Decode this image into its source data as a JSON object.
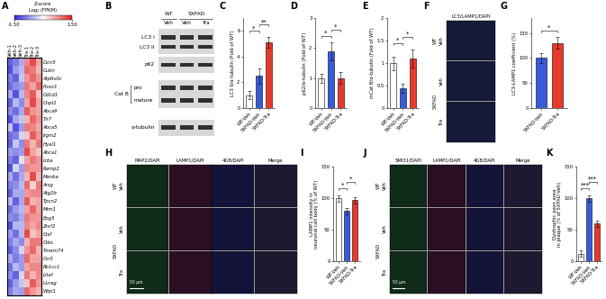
{
  "panel_labels": [
    "A",
    "B",
    "C",
    "D",
    "E",
    "F",
    "G",
    "H",
    "I",
    "J",
    "K"
  ],
  "heatmap": {
    "columns": [
      "Veh-1",
      "Veh-2",
      "Veh-3",
      "Tra-1",
      "Tra-2",
      "Tra-3"
    ],
    "rows": [
      "Clcn5",
      "Cubn",
      "Atp6v0c",
      "Foxo3",
      "Cd1d1",
      "Chpt1",
      "Abca9",
      "Tlr7",
      "Abca5",
      "Irgm2",
      "Hyal1",
      "Abca1",
      "Lrba",
      "Ramp2",
      "Manba",
      "Arsg",
      "Atg2b",
      "Tpcn2",
      "Mtm1",
      "Epg5",
      "Znrf2",
      "Ctsf",
      "Ctbs",
      "Tmem74",
      "Cln5",
      "Rb1cc1",
      "Litaf",
      "Uvrag",
      "Wipi1"
    ],
    "cells": [
      [
        -1.1,
        -0.9,
        -0.6,
        0.8,
        1.2,
        0.6
      ],
      [
        -1.2,
        -0.7,
        -0.5,
        1.0,
        0.9,
        0.5
      ],
      [
        -0.9,
        -1.1,
        -0.4,
        0.7,
        1.0,
        0.7
      ],
      [
        -1.0,
        -0.8,
        -0.7,
        0.9,
        0.6,
        1.0
      ],
      [
        -0.6,
        -1.2,
        -0.5,
        0.8,
        1.1,
        0.4
      ],
      [
        -1.1,
        -0.5,
        -0.8,
        0.6,
        1.2,
        0.6
      ],
      [
        -0.8,
        -1.0,
        -0.6,
        1.1,
        0.7,
        0.6
      ],
      [
        -1.2,
        -0.6,
        -0.4,
        0.5,
        1.0,
        0.7
      ],
      [
        -0.4,
        -1.2,
        -0.7,
        0.9,
        0.8,
        0.6
      ],
      [
        -1.0,
        -0.9,
        -0.3,
        0.4,
        1.1,
        0.7
      ],
      [
        -1.1,
        -0.4,
        -0.8,
        0.9,
        0.5,
        0.9
      ],
      [
        -0.7,
        -0.8,
        -0.7,
        1.2,
        0.6,
        0.4
      ],
      [
        -0.9,
        -1.1,
        -0.2,
        0.6,
        0.9,
        0.7
      ],
      [
        -1.2,
        -0.3,
        -0.7,
        0.8,
        0.7,
        0.7
      ],
      [
        -0.6,
        -1.0,
        -0.6,
        0.5,
        1.2,
        0.5
      ],
      [
        -0.9,
        -0.8,
        -0.5,
        1.0,
        0.3,
        0.9
      ],
      [
        -1.1,
        -0.6,
        -0.6,
        0.7,
        0.8,
        0.8
      ],
      [
        -0.5,
        -1.1,
        -0.6,
        1.1,
        0.5,
        0.6
      ],
      [
        -1.0,
        -0.7,
        -0.5,
        0.6,
        1.0,
        0.6
      ],
      [
        -0.8,
        -0.9,
        -0.6,
        0.9,
        0.7,
        0.7
      ],
      [
        -1.2,
        -0.5,
        -0.5,
        0.8,
        0.6,
        0.8
      ],
      [
        -0.7,
        -1.0,
        -0.5,
        1.2,
        0.4,
        0.6
      ],
      [
        -0.9,
        -0.6,
        -0.8,
        0.5,
        0.9,
        0.9
      ],
      [
        -1.1,
        -0.8,
        -0.3,
        0.7,
        1.0,
        0.5
      ],
      [
        -0.6,
        -0.9,
        -0.7,
        1.0,
        0.6,
        0.6
      ],
      [
        -1.0,
        -0.5,
        -0.7,
        0.6,
        0.8,
        0.8
      ],
      [
        -0.8,
        -1.1,
        -0.3,
        0.9,
        0.5,
        0.8
      ],
      [
        -1.1,
        -0.7,
        -0.4,
        0.4,
        1.1,
        0.7
      ],
      [
        -0.9,
        -0.6,
        -0.7,
        1.0,
        0.7,
        0.5
      ]
    ],
    "colorbar": {
      "title": [
        "Z-score",
        "Log₂ (FPKM)"
      ],
      "range": [
        -1.5,
        1.5
      ],
      "ticks": [
        {
          "value": -1.5,
          "label": "-1.50"
        },
        {
          "value": 1.5,
          "label": "1.50"
        }
      ]
    }
  },
  "blot": {
    "groups": [
      {
        "label": "WT",
        "lanes": [
          "Veh"
        ]
      },
      {
        "label": "5XFAD",
        "lanes": [
          "Veh",
          "Tra"
        ]
      }
    ],
    "rows": [
      "LC3 I",
      "LC3 II",
      "p62",
      "pro",
      "mature",
      "α-tubulin"
    ],
    "bracket": {
      "label": "Cat B",
      "rows": [
        3,
        4
      ]
    }
  },
  "chart_data": [
    {
      "type": "bar",
      "ylabel": "LC3 II/α-tubulin (Fold of WT)",
      "categories": [
        "WT-Veh",
        "5XFAD-Veh",
        "5XFAD-Tra"
      ],
      "values": [
        1.0,
        2.5,
        5.1
      ],
      "errors": [
        0.3,
        0.6,
        0.4
      ],
      "colors": [
        "#ffffff",
        "#3a5bd9",
        "#e8392b"
      ],
      "ylim": [
        0,
        7
      ],
      "yticks": [
        0,
        2,
        4,
        6
      ],
      "significance": [
        {
          "from": 0,
          "to": 1,
          "label": "*"
        },
        {
          "from": 1,
          "to": 2,
          "label": "**"
        }
      ]
    },
    {
      "type": "bar",
      "ylabel": "p62/α-tubulin (Fold of WT)",
      "categories": [
        "WT-Veh",
        "5XFAD-Veh",
        "5XFAD-Tra"
      ],
      "values": [
        1.0,
        1.9,
        1.0
      ],
      "errors": [
        0.15,
        0.3,
        0.2
      ],
      "colors": [
        "#ffffff",
        "#3a5bd9",
        "#e8392b"
      ],
      "ylim": [
        0,
        3
      ],
      "yticks": [
        0,
        1,
        2,
        3
      ],
      "significance": [
        {
          "from": 0,
          "to": 1,
          "label": "*"
        },
        {
          "from": 1,
          "to": 2,
          "label": "*"
        }
      ]
    },
    {
      "type": "bar",
      "ylabel": "mCat B/α-tubulin (Fold of WT)",
      "categories": [
        "WT-Veh",
        "5XFAD-Veh",
        "5XFAD-Tra"
      ],
      "values": [
        1.0,
        0.45,
        1.1
      ],
      "errors": [
        0.15,
        0.1,
        0.2
      ],
      "colors": [
        "#ffffff",
        "#3a5bd9",
        "#e8392b"
      ],
      "ylim": [
        0,
        2
      ],
      "yticks": [
        0,
        0.5,
        1,
        1.5,
        2
      ],
      "significance": [
        {
          "from": 0,
          "to": 1,
          "label": "*"
        },
        {
          "from": 1,
          "to": 2,
          "label": "*"
        }
      ]
    },
    {
      "type": "bar",
      "ylabel": "LC3-LAMP1 coefficient (%)",
      "categories": [
        "5XFAD-Veh",
        "5XFAD-Tra"
      ],
      "values": [
        100,
        130
      ],
      "errors": [
        10,
        12
      ],
      "colors": [
        "#3a5bd9",
        "#e8392b"
      ],
      "ylim": [
        0,
        180
      ],
      "yticks": [
        0,
        50,
        100,
        150
      ],
      "significance": [
        {
          "from": 0,
          "to": 1,
          "label": "*"
        }
      ]
    },
    {
      "type": "bar",
      "ylabel": "LAMP1 intensity in\nneuronal cell body (% of WT)",
      "categories": [
        "WT-Veh",
        "5XFAD-Veh",
        "5XFAD-Tra"
      ],
      "values": [
        100,
        80,
        97
      ],
      "errors": [
        5,
        5,
        5
      ],
      "colors": [
        "#ffffff",
        "#3a5bd9",
        "#e8392b"
      ],
      "ylim": [
        0,
        150
      ],
      "yticks": [
        0,
        50,
        100,
        150
      ],
      "significance": [
        {
          "from": 0,
          "to": 1,
          "label": "*"
        },
        {
          "from": 1,
          "to": 2,
          "label": "*"
        }
      ]
    },
    {
      "type": "bar",
      "ylabel": "Dystrophic axon area\nin plaque (% of 5XFAD-Veh)",
      "categories": [
        "WT-Veh",
        "5XFAD-Veh",
        "5XFAD-Tra"
      ],
      "values": [
        12,
        100,
        60
      ],
      "errors": [
        5,
        5,
        5
      ],
      "colors": [
        "#ffffff",
        "#3a5bd9",
        "#e8392b"
      ],
      "ylim": [
        0,
        150
      ],
      "yticks": [
        0,
        50,
        100,
        150
      ],
      "significance": [
        {
          "from": 0,
          "to": 1,
          "label": "***"
        },
        {
          "from": 1,
          "to": 2,
          "label": "***"
        }
      ]
    }
  ],
  "images": [
    {
      "columns": [
        "LC3/LAMP1/DAPI"
      ],
      "row_groups": [
        {
          "label": "WT",
          "rows": [
            "Veh"
          ]
        },
        {
          "label": "5XFAD",
          "rows": [
            "Veh",
            "Tra"
          ]
        }
      ]
    },
    {
      "columns": [
        "MAP2/DAPI",
        "LAMP1/DAPI",
        "4G8/DAPI",
        "Merge"
      ],
      "row_groups": [
        {
          "label": "WT",
          "rows": [
            "Veh"
          ]
        },
        {
          "label": "5XFAD",
          "rows": [
            "Veh",
            "Tra"
          ]
        }
      ],
      "scale_bar": "50 μm"
    },
    {
      "columns": [
        "SMI31/DAPI",
        "LAMP1/DAPI",
        "4G8/DAPI",
        "Merge"
      ],
      "row_groups": [
        {
          "label": "WT",
          "rows": [
            "Veh"
          ]
        },
        {
          "label": "5XFAD",
          "rows": [
            "Veh",
            "Tra"
          ]
        }
      ],
      "scale_bar": "50 μm"
    }
  ]
}
